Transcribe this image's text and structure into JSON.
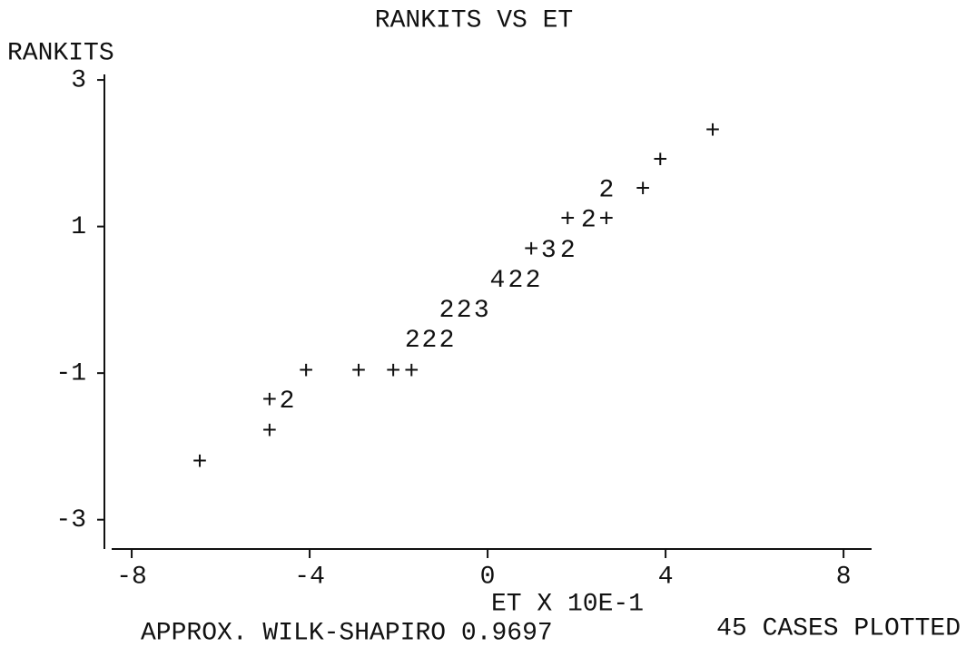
{
  "chart_data": {
    "type": "scatter",
    "title": "RANKITS VS ET",
    "ylabel": "RANKITS",
    "xlabel": "ET X 10E-1",
    "footnotes": [
      "APPROX. WILK-SHAPIRO 0.9697",
      "45 CASES PLOTTED"
    ],
    "xlim": [
      -8.45,
      8.63
    ],
    "ylim": [
      -3.4,
      3.1
    ],
    "xticks": [
      -8,
      -4,
      0,
      4,
      8
    ],
    "yticks": [
      3,
      1,
      -1,
      -3
    ],
    "color": "#111111",
    "series": [
      {
        "x": [
          5.06,
          3.88,
          2.67,
          3.49,
          1.8,
          2.27,
          2.67,
          0.98,
          1.37,
          1.8,
          0.22,
          0.63,
          1.02,
          -0.92,
          -0.53,
          -0.14,
          -1.69,
          -1.31,
          -0.92,
          -4.08,
          -2.9,
          -2.12,
          -1.71,
          -4.9,
          -4.51,
          -4.9,
          -6.47
        ],
        "values": [
          2.3,
          1.9,
          1.5,
          1.5,
          1.09,
          1.09,
          1.09,
          0.68,
          0.68,
          0.68,
          0.27,
          0.27,
          0.27,
          -0.14,
          -0.14,
          -0.14,
          -0.55,
          -0.55,
          -0.55,
          -0.98,
          -0.98,
          -0.98,
          -0.98,
          -1.38,
          -1.38,
          -1.8,
          -2.22
        ],
        "markers": [
          "+",
          "+",
          "2",
          "+",
          "+",
          "2",
          "+",
          "+",
          "3",
          "2",
          "4",
          "2",
          "2",
          "2",
          "2",
          "3",
          "2",
          "2",
          "2",
          "+",
          "+",
          "+",
          "+",
          "+",
          "2",
          "+",
          "+"
        ]
      }
    ]
  }
}
